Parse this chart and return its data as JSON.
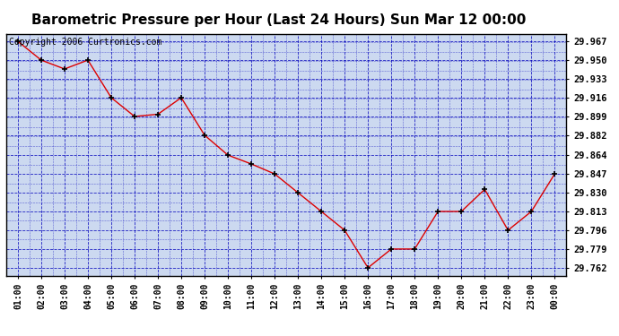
{
  "title": "Barometric Pressure per Hour (Last 24 Hours) Sun Mar 12 00:00",
  "copyright": "Copyright 2006 Curtronics.com",
  "hours": [
    "01:00",
    "02:00",
    "03:00",
    "04:00",
    "05:00",
    "06:00",
    "07:00",
    "08:00",
    "09:00",
    "10:00",
    "11:00",
    "12:00",
    "13:00",
    "14:00",
    "15:00",
    "16:00",
    "17:00",
    "18:00",
    "19:00",
    "20:00",
    "21:00",
    "22:00",
    "23:00",
    "00:00"
  ],
  "values": [
    29.967,
    29.95,
    29.942,
    29.95,
    29.916,
    29.899,
    29.901,
    29.916,
    29.882,
    29.864,
    29.856,
    29.847,
    29.83,
    29.813,
    29.796,
    29.762,
    29.779,
    29.779,
    29.813,
    29.813,
    29.833,
    29.796,
    29.813,
    29.847
  ],
  "yticks": [
    29.762,
    29.779,
    29.796,
    29.813,
    29.83,
    29.847,
    29.864,
    29.882,
    29.899,
    29.916,
    29.933,
    29.95,
    29.967
  ],
  "ymin": 29.755,
  "ymax": 29.974,
  "line_color": "#dd0000",
  "marker_color": "#000000",
  "plot_bg": "#ccd9f0",
  "grid_color": "#0000bb",
  "title_fontsize": 11,
  "copyright_fontsize": 7,
  "tick_fontsize": 7,
  "ytick_fontsize": 7.5
}
